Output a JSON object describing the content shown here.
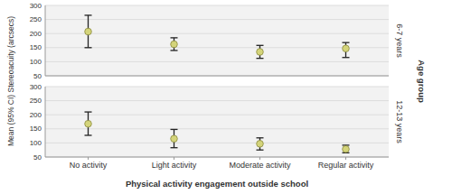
{
  "chart_data": {
    "type": "errorbar",
    "categories": [
      "No activity",
      "Light activity",
      "Moderate activity",
      "Regular activity"
    ],
    "series": [
      {
        "name": "6-7 years",
        "values": [
          207,
          162,
          135,
          147
        ],
        "lower": [
          150,
          140,
          112,
          115
        ],
        "upper": [
          265,
          185,
          158,
          168
        ]
      },
      {
        "name": "12-13 years",
        "values": [
          168,
          115,
          97,
          78
        ],
        "lower": [
          127,
          83,
          75,
          65
        ],
        "upper": [
          210,
          148,
          118,
          92
        ]
      }
    ],
    "color": "#d4d47a",
    "ylim": [
      50,
      300
    ],
    "yticks": [
      50,
      100,
      150,
      200,
      250,
      300
    ],
    "ylabel": "Mean (95% CI) Stereoacuity (arcsecs)",
    "xlabel": "Physical activity engagement outside school",
    "annotations": [
      "Age group"
    ],
    "grid": true
  }
}
